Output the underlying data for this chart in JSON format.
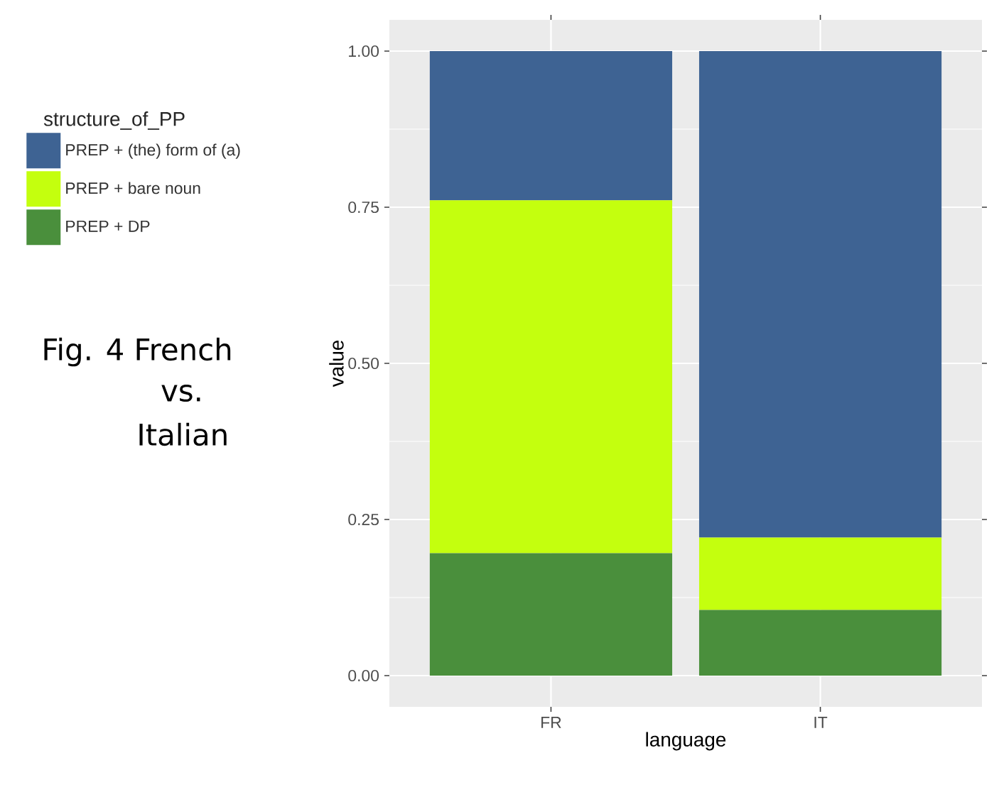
{
  "chart_data": {
    "type": "bar",
    "stacked": true,
    "categories": [
      "FR",
      "IT"
    ],
    "series": [
      {
        "name": "PREP + DP",
        "color": "#4a8f3c",
        "values": [
          0.196,
          0.105
        ]
      },
      {
        "name": "PREP + bare noun",
        "color": "#c4ff0e",
        "values": [
          0.565,
          0.116
        ]
      },
      {
        "name": "PREP + (the) form of (a)",
        "color": "#3e6393",
        "values": [
          0.239,
          0.779
        ]
      }
    ],
    "ylim": [
      -0.05,
      1.05
    ],
    "yticks": [
      {
        "value": 0,
        "label": "0.00"
      },
      {
        "value": 0.25,
        "label": "0.25"
      },
      {
        "value": 0.5,
        "label": "0.50"
      },
      {
        "value": 0.75,
        "label": "0.75"
      },
      {
        "value": 1,
        "label": "1.00"
      }
    ],
    "xlabel": "language",
    "ylabel": "value",
    "legend_title": "structure_of_PP",
    "legend": "left",
    "grid": true,
    "annotations": [
      "Fig. 4 French",
      "vs.",
      "Italian"
    ]
  }
}
